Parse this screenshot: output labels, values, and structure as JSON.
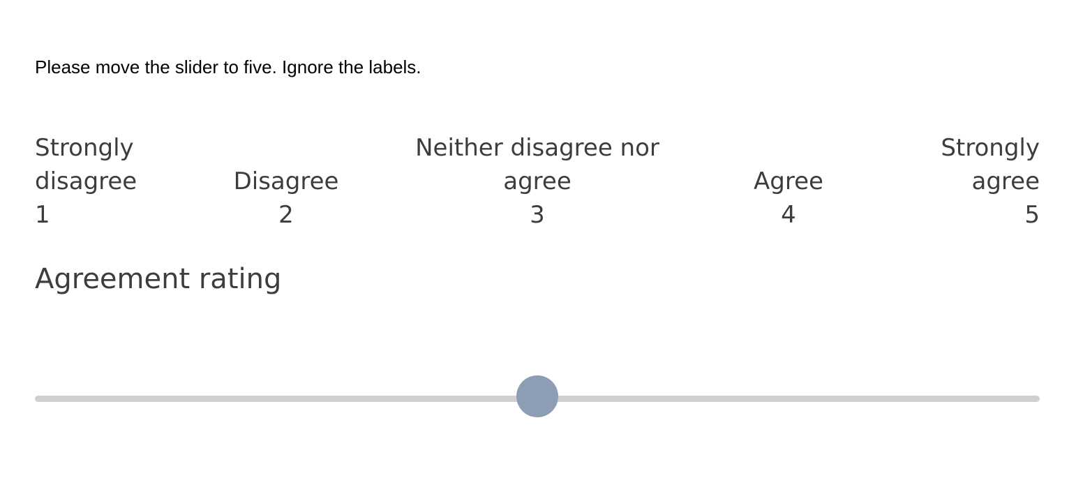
{
  "instruction": "Please move the slider to five. Ignore the labels.",
  "scale": {
    "anchors": [
      {
        "label_lines": [
          "Strongly",
          "disagree"
        ],
        "value": "1"
      },
      {
        "label_lines": [
          "Disagree"
        ],
        "value": "2"
      },
      {
        "label_lines": [
          "Neither disagree nor",
          "agree"
        ],
        "value": "3"
      },
      {
        "label_lines": [
          "Agree"
        ],
        "value": "4"
      },
      {
        "label_lines": [
          "Strongly",
          "agree"
        ],
        "value": "5"
      }
    ]
  },
  "question_label": "Agreement rating",
  "slider": {
    "min": 1,
    "max": 5,
    "value": 3,
    "track_color": "#d0d0d0",
    "handle_color": "#8d9db4"
  }
}
